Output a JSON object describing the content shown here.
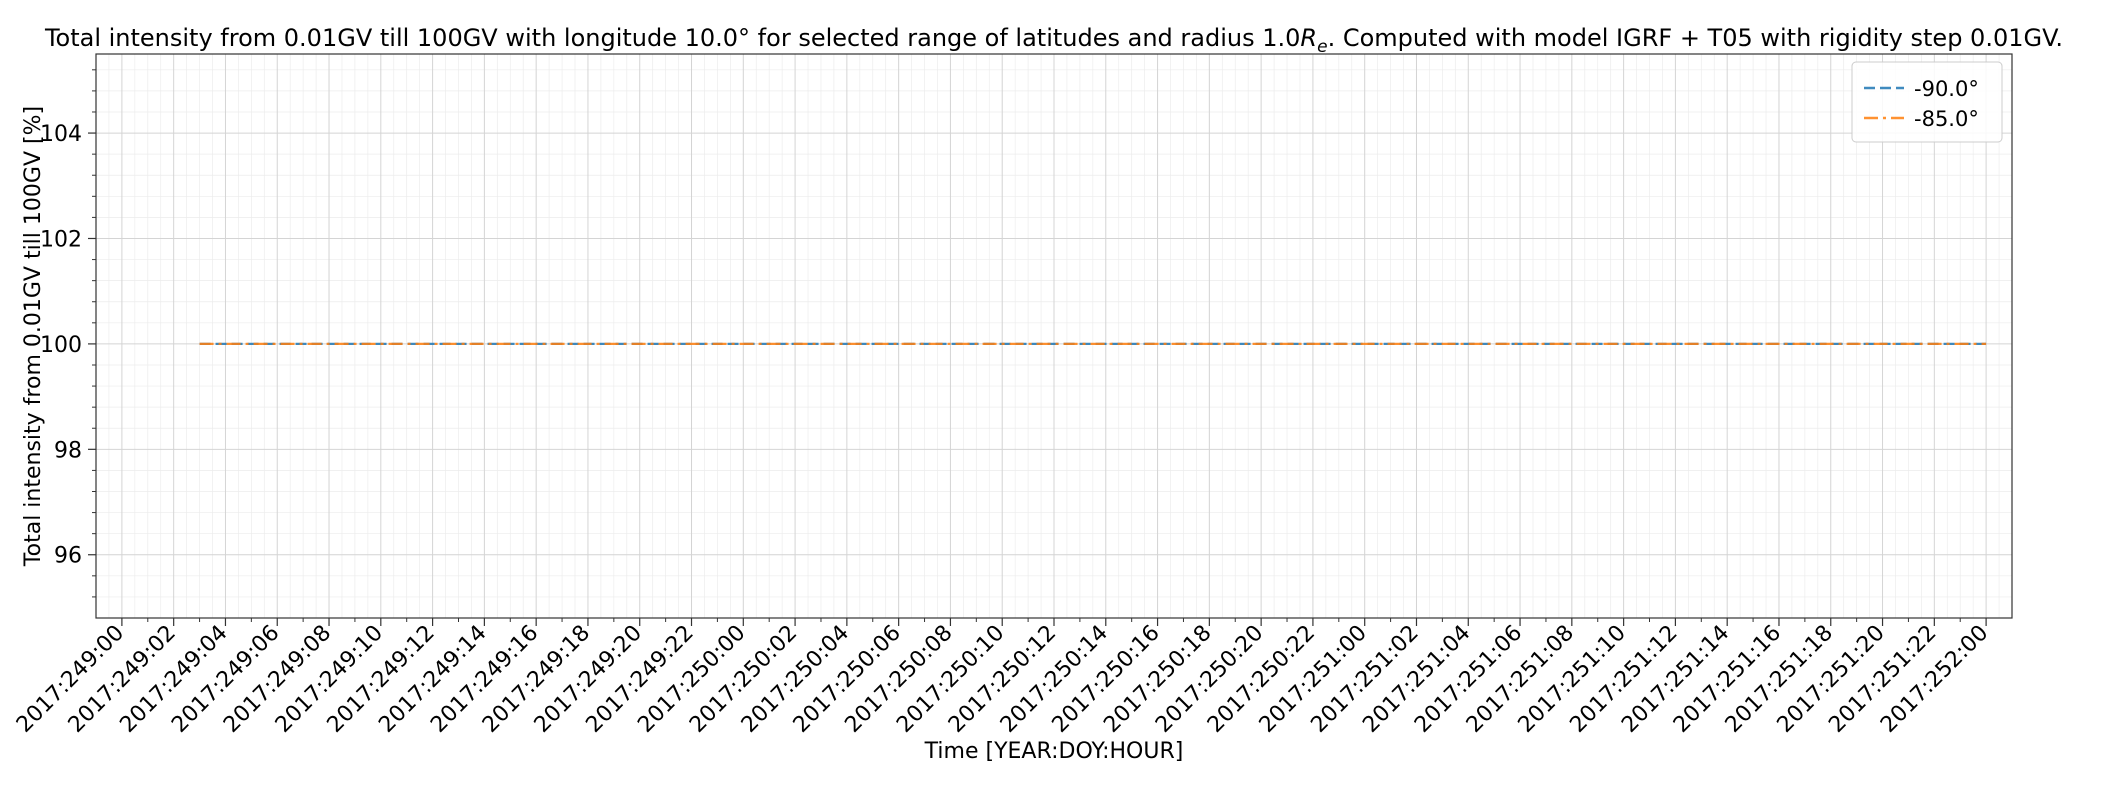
{
  "chart_data": {
    "type": "line",
    "title": {
      "pre": "Total intensity from 0.01GV till 100GV with longitude 10.0° for selected range of latitudes and radius 1.0",
      "var": "R",
      "sub": "e",
      "post": ". Computed with model IGRF + T05 with rigidity step 0.01GV."
    },
    "xlabel": "Time [YEAR:DOY:HOUR]",
    "ylabel": "Total intensity from 0.01GV till 100GV [%]",
    "ylim": [
      94.8,
      105.5
    ],
    "xlim": [
      -1,
      73
    ],
    "grid": true,
    "legend_position": "top-right",
    "x_tick_labels": [
      "2017:249:00",
      "2017:249:02",
      "2017:249:04",
      "2017:249:06",
      "2017:249:08",
      "2017:249:10",
      "2017:249:12",
      "2017:249:14",
      "2017:249:16",
      "2017:249:18",
      "2017:249:20",
      "2017:249:22",
      "2017:250:00",
      "2017:250:02",
      "2017:250:04",
      "2017:250:06",
      "2017:250:08",
      "2017:250:10",
      "2017:250:12",
      "2017:250:14",
      "2017:250:16",
      "2017:250:18",
      "2017:250:20",
      "2017:250:22",
      "2017:251:00",
      "2017:251:02",
      "2017:251:04",
      "2017:251:06",
      "2017:251:08",
      "2017:251:10",
      "2017:251:12",
      "2017:251:14",
      "2017:251:16",
      "2017:251:18",
      "2017:251:20",
      "2017:251:22",
      "2017:252:00"
    ],
    "y_ticks": [
      96,
      98,
      100,
      102,
      104
    ],
    "series": [
      {
        "name": "-90.0°",
        "color": "#1f77b4",
        "dash": "dashed",
        "x_hours": [
          3,
          72
        ],
        "values": [
          100,
          100
        ]
      },
      {
        "name": "-85.0°",
        "color": "#ff7f0e",
        "dash": "dashdot",
        "x_hours": [
          3,
          72
        ],
        "values": [
          100,
          100
        ]
      }
    ]
  }
}
